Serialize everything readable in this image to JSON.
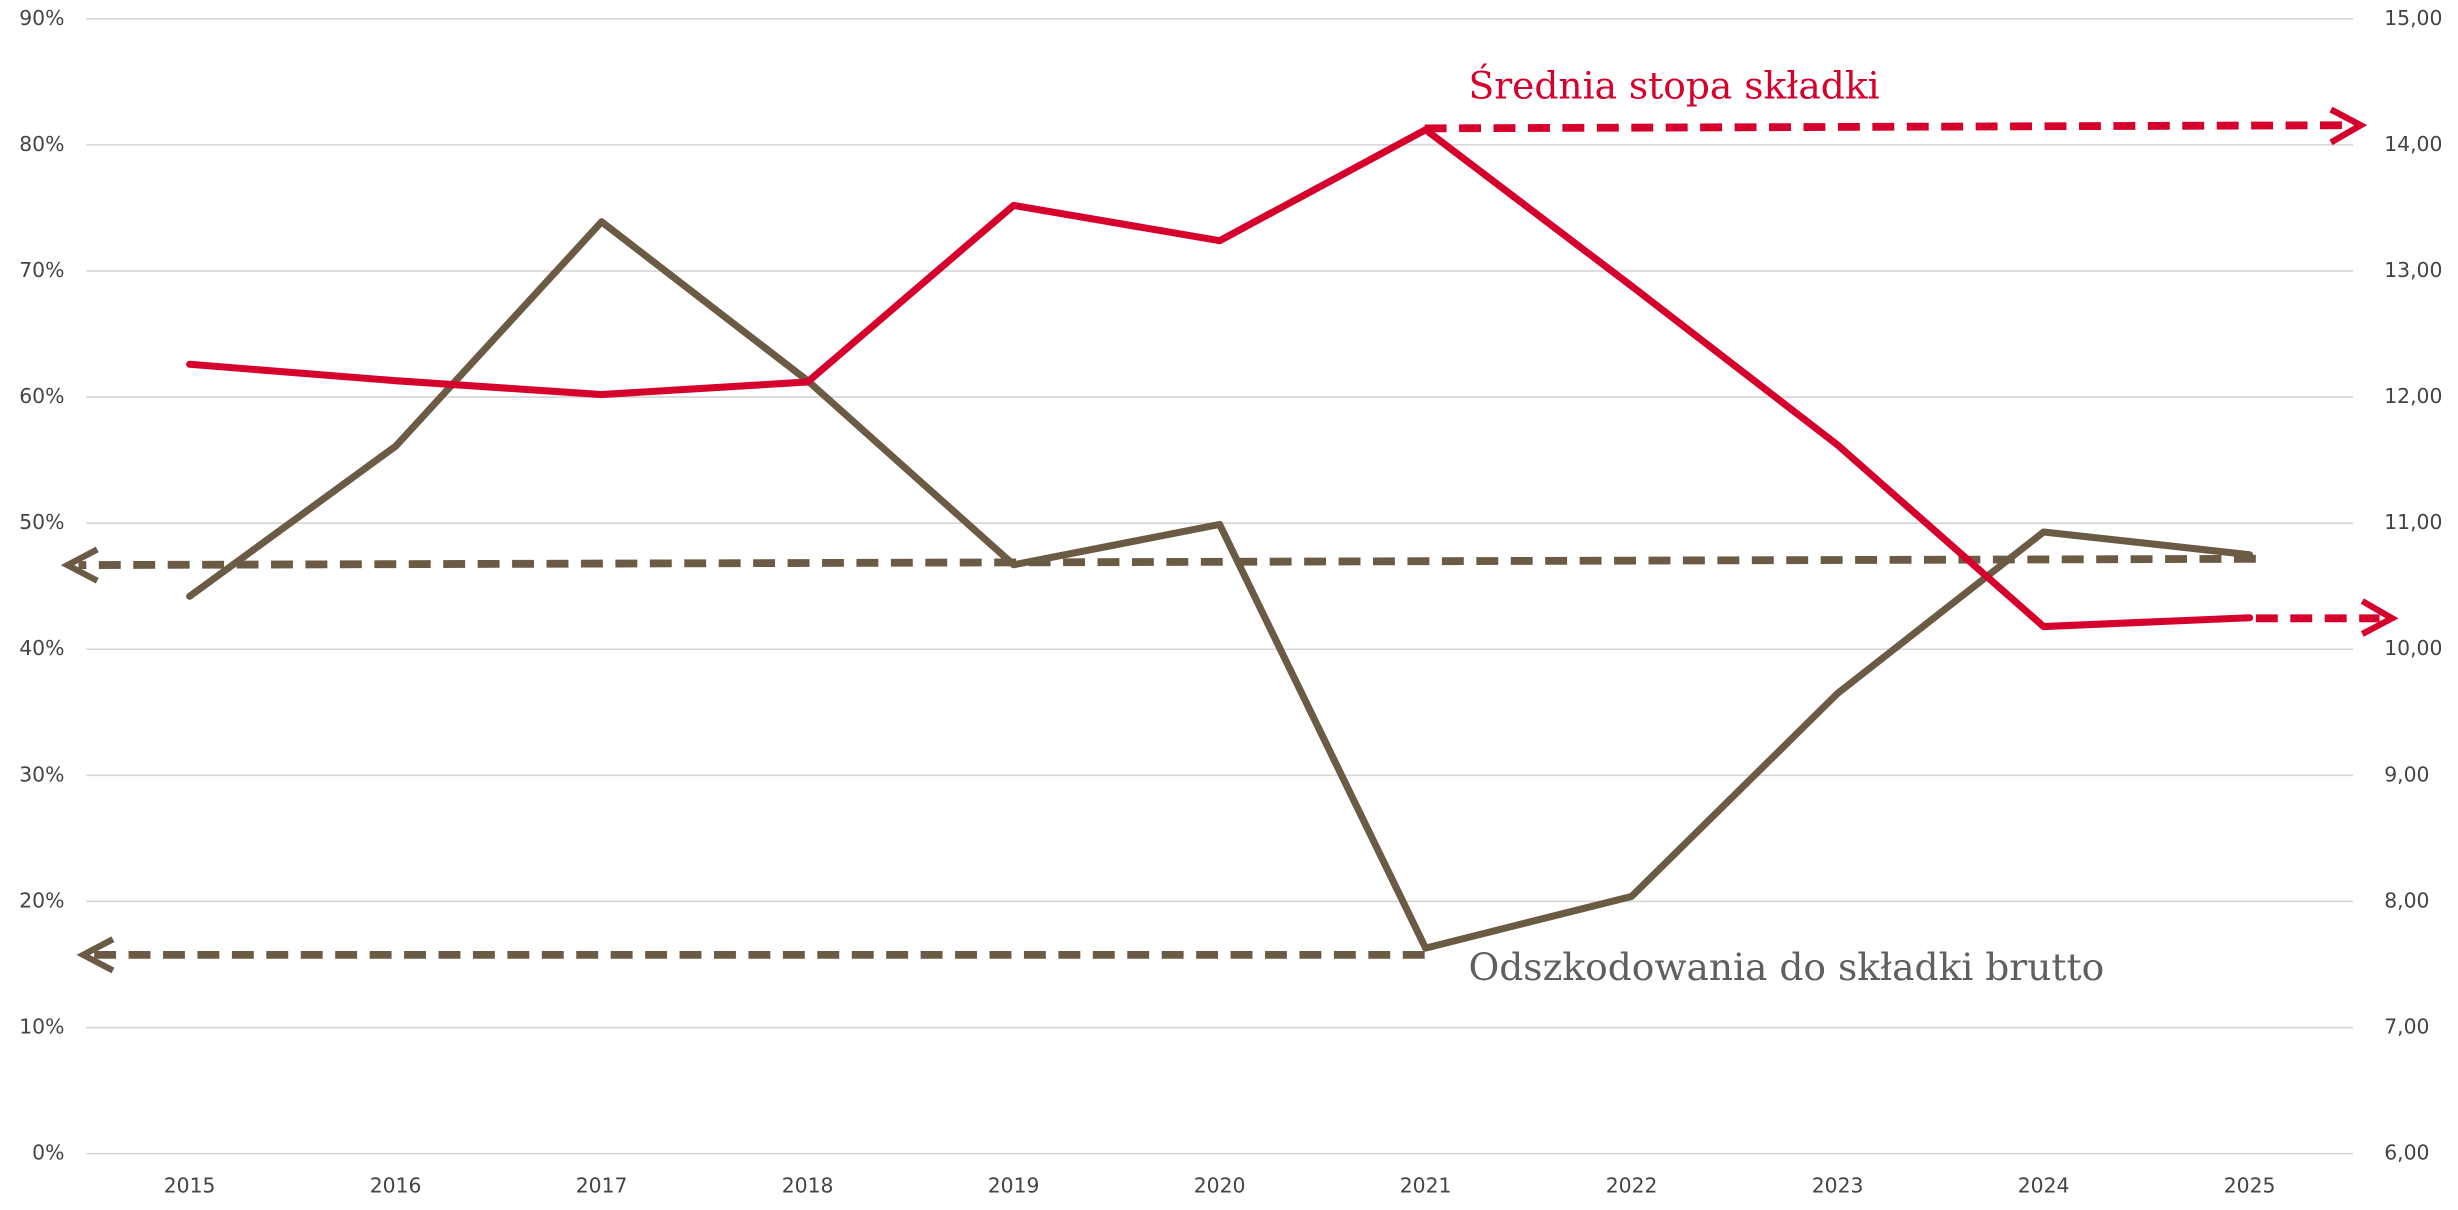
{
  "chart_data": {
    "type": "line",
    "categories": [
      "2015",
      "2016",
      "2017",
      "2018",
      "2019",
      "2020",
      "2021",
      "2022",
      "2023",
      "2024",
      "2025"
    ],
    "series": [
      {
        "name": "Odszkodowania do składki brutto",
        "color": "#6b5b45",
        "axis": "y",
        "values": [
          44.2,
          56.1,
          73.9,
          61.3,
          46.7,
          49.9,
          16.3,
          20.4,
          36.5,
          49.3,
          47.5
        ]
      },
      {
        "name": "Średnia stopa składki",
        "color": "#d5002c",
        "axis": "y2",
        "values": [
          12.26,
          12.13,
          12.02,
          12.12,
          13.52,
          13.24,
          14.12,
          12.88,
          11.62,
          10.18,
          10.25
        ]
      }
    ],
    "ylim": [
      0,
      90
    ],
    "yticks": [
      {
        "value": 0,
        "label": "0%"
      },
      {
        "value": 10,
        "label": "10%"
      },
      {
        "value": 20,
        "label": "20%"
      },
      {
        "value": 30,
        "label": "30%"
      },
      {
        "value": 40,
        "label": "40%"
      },
      {
        "value": 50,
        "label": "50%"
      },
      {
        "value": 60,
        "label": "60%"
      },
      {
        "value": 70,
        "label": "70%"
      },
      {
        "value": 80,
        "label": "80%"
      },
      {
        "value": 90,
        "label": "90%"
      }
    ],
    "y2lim": [
      6,
      15
    ],
    "y2ticks": [
      {
        "value": 6,
        "label": "6,00"
      },
      {
        "value": 7,
        "label": "7,00"
      },
      {
        "value": 8,
        "label": "8,00"
      },
      {
        "value": 9,
        "label": "9,00"
      },
      {
        "value": 10,
        "label": "10,00"
      },
      {
        "value": 11,
        "label": "11,00"
      },
      {
        "value": 12,
        "label": "12,00"
      },
      {
        "value": 13,
        "label": "13,00"
      },
      {
        "value": 14,
        "label": "14,00"
      },
      {
        "value": 15,
        "label": "15,00"
      }
    ],
    "grid": true
  }
}
